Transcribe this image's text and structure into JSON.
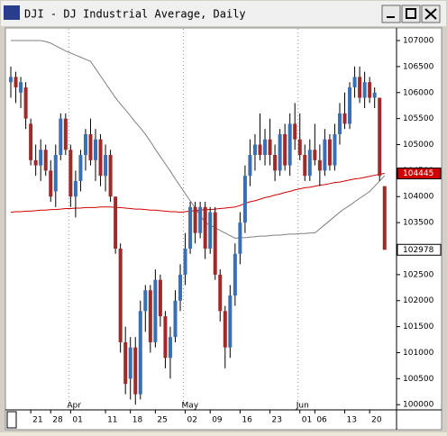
{
  "window": {
    "title": "DJI - DJ Industrial Average, Daily"
  },
  "chart_data": {
    "type": "candlestick",
    "categories": [
      null,
      null,
      null,
      null,
      "21",
      null,
      null,
      null,
      "28",
      null,
      null,
      null,
      "01",
      null,
      null,
      null,
      null,
      null,
      null,
      "11",
      null,
      null,
      null,
      null,
      "18",
      null,
      null,
      null,
      null,
      "25",
      null,
      null,
      null,
      null,
      null,
      "02",
      null,
      null,
      null,
      null,
      "09",
      null,
      null,
      null,
      null,
      null,
      "16",
      null,
      null,
      null,
      null,
      null,
      "23",
      null,
      null,
      null,
      null,
      null,
      "01",
      null,
      null,
      "06",
      null,
      null,
      null,
      null,
      null,
      "13",
      null,
      null,
      null,
      null,
      "20",
      null,
      null,
      null
    ],
    "months": [
      null,
      null,
      null,
      null,
      null,
      null,
      null,
      null,
      null,
      null,
      null,
      null,
      "Apr",
      null,
      null,
      null,
      null,
      null,
      null,
      null,
      null,
      null,
      null,
      null,
      null,
      null,
      null,
      null,
      null,
      null,
      null,
      null,
      null,
      null,
      null,
      "May",
      null,
      null,
      null,
      null,
      null,
      null,
      null,
      null,
      null,
      null,
      null,
      null,
      null,
      null,
      null,
      null,
      null,
      null,
      null,
      null,
      null,
      null,
      "Jun",
      null,
      null,
      null,
      null,
      null,
      null,
      null,
      null,
      null,
      null,
      null,
      null,
      null,
      null,
      null,
      null,
      null
    ],
    "ohlc": [
      [
        106200,
        106500,
        105900,
        106300
      ],
      [
        106300,
        106400,
        105800,
        106100
      ],
      [
        106000,
        106300,
        105700,
        106200
      ],
      [
        106100,
        106200,
        105300,
        105500
      ],
      [
        105400,
        105500,
        104600,
        104700
      ],
      [
        104700,
        105000,
        104400,
        104600
      ],
      [
        104600,
        105100,
        104300,
        104900
      ],
      [
        104900,
        105000,
        104400,
        104500
      ],
      [
        104500,
        104700,
        103900,
        104000
      ],
      [
        104100,
        105000,
        103800,
        104800
      ],
      [
        104800,
        105600,
        104700,
        105500
      ],
      [
        105500,
        105600,
        104800,
        104900
      ],
      [
        104900,
        105000,
        103800,
        104000
      ],
      [
        104000,
        104500,
        103600,
        104300
      ],
      [
        104300,
        104900,
        104100,
        104800
      ],
      [
        104800,
        105300,
        104500,
        105200
      ],
      [
        105200,
        105500,
        104600,
        104700
      ],
      [
        104700,
        105300,
        104300,
        105100
      ],
      [
        105100,
        105200,
        104200,
        104400
      ],
      [
        104400,
        105000,
        104100,
        104800
      ],
      [
        104800,
        104900,
        103900,
        104000
      ],
      [
        104000,
        104000,
        102900,
        103000
      ],
      [
        103000,
        103100,
        101000,
        101200
      ],
      [
        101200,
        101500,
        100200,
        100400
      ],
      [
        100500,
        101300,
        100100,
        101100
      ],
      [
        101100,
        101300,
        100000,
        100200
      ],
      [
        100200,
        102000,
        100100,
        101800
      ],
      [
        101800,
        102300,
        101400,
        102200
      ],
      [
        102200,
        102300,
        101000,
        101200
      ],
      [
        101200,
        102600,
        101100,
        102400
      ],
      [
        102400,
        102500,
        101500,
        101700
      ],
      [
        101700,
        101800,
        100700,
        100900
      ],
      [
        100900,
        101500,
        100500,
        101300
      ],
      [
        101300,
        102200,
        101200,
        102000
      ],
      [
        102000,
        102700,
        101800,
        102500
      ],
      [
        102500,
        103300,
        102300,
        103000
      ],
      [
        103000,
        103900,
        102900,
        103800
      ],
      [
        103800,
        103900,
        103100,
        103300
      ],
      [
        103300,
        103900,
        103200,
        103800
      ],
      [
        103800,
        103900,
        102800,
        103000
      ],
      [
        103000,
        103800,
        102900,
        103700
      ],
      [
        103700,
        103800,
        102400,
        102500
      ],
      [
        102500,
        102600,
        101600,
        101800
      ],
      [
        101800,
        101900,
        100700,
        101100
      ],
      [
        101100,
        102300,
        100900,
        102100
      ],
      [
        102100,
        103100,
        101900,
        102900
      ],
      [
        102900,
        103700,
        102700,
        103500
      ],
      [
        103500,
        104600,
        103300,
        104400
      ],
      [
        104400,
        105100,
        104200,
        104800
      ],
      [
        104800,
        105200,
        104500,
        105000
      ],
      [
        105000,
        105600,
        104700,
        104800
      ],
      [
        104800,
        105300,
        104600,
        105100
      ],
      [
        105100,
        105500,
        104600,
        104800
      ],
      [
        104800,
        105000,
        104300,
        104500
      ],
      [
        104500,
        105300,
        104400,
        105200
      ],
      [
        105200,
        105400,
        104500,
        104600
      ],
      [
        104600,
        105600,
        104400,
        105400
      ],
      [
        105400,
        105800,
        104900,
        105100
      ],
      [
        105100,
        105600,
        104700,
        104800
      ],
      [
        104800,
        105000,
        104300,
        104400
      ],
      [
        104400,
        105100,
        104300,
        104900
      ],
      [
        104900,
        105400,
        104600,
        104700
      ],
      [
        104700,
        105000,
        104200,
        104500
      ],
      [
        104500,
        105300,
        104400,
        105100
      ],
      [
        105100,
        105200,
        104500,
        104600
      ],
      [
        104600,
        105400,
        104500,
        105200
      ],
      [
        105200,
        105800,
        105000,
        105600
      ],
      [
        105600,
        106000,
        105300,
        105400
      ],
      [
        105400,
        106200,
        105300,
        106100
      ],
      [
        106100,
        106500,
        105900,
        106300
      ],
      [
        106300,
        106500,
        105800,
        105900
      ],
      [
        105900,
        106400,
        105700,
        106200
      ],
      [
        106200,
        106300,
        105800,
        105900
      ],
      [
        105900,
        106100,
        105700,
        106000
      ],
      [
        105900,
        105900,
        104300,
        104400
      ],
      [
        104200,
        104200,
        102978,
        102978
      ]
    ],
    "up_color": "#3a6fb4",
    "down_color": "#a02a2a",
    "overlays": [
      {
        "color": "#808080",
        "values": [
          107000,
          107000,
          107000,
          107000,
          107000,
          107000,
          107000,
          106980,
          106950,
          106900,
          106850,
          106800,
          106760,
          106720,
          106680,
          106640,
          106600,
          106460,
          106320,
          106180,
          106040,
          105900,
          105780,
          105670,
          105550,
          105430,
          105320,
          105200,
          105060,
          104910,
          104770,
          104630,
          104490,
          104340,
          104200,
          104060,
          103920,
          103780,
          103640,
          103500,
          103450,
          103400,
          103350,
          103300,
          103250,
          103200,
          103210,
          103210,
          103220,
          103230,
          103240,
          103240,
          103250,
          103260,
          103260,
          103270,
          103280,
          103280,
          103290,
          103290,
          103300,
          103300,
          103380,
          103460,
          103540,
          103620,
          103700,
          103770,
          103830,
          103900,
          103970,
          104030,
          104100,
          104200,
          104300,
          104400
        ]
      },
      {
        "color": "#d00000",
        "values": [
          103700,
          103710,
          103710,
          103720,
          103720,
          103730,
          103740,
          103740,
          103750,
          103750,
          103760,
          103770,
          103770,
          103780,
          103780,
          103790,
          103790,
          103790,
          103800,
          103800,
          103800,
          103790,
          103790,
          103780,
          103770,
          103760,
          103760,
          103750,
          103740,
          103740,
          103730,
          103720,
          103710,
          103710,
          103700,
          103710,
          103720,
          103730,
          103740,
          103750,
          103750,
          103760,
          103770,
          103780,
          103790,
          103800,
          103830,
          103870,
          103900,
          103920,
          103950,
          103980,
          104000,
          104030,
          104050,
          104080,
          104100,
          104130,
          104150,
          104170,
          104180,
          104200,
          104220,
          104230,
          104250,
          104270,
          104280,
          104300,
          104320,
          104340,
          104350,
          104370,
          104390,
          104410,
          104430,
          104445
        ]
      }
    ],
    "price_tags": [
      {
        "value": 104445,
        "color": "#d00000",
        "text_color": "#ffffff"
      },
      {
        "value": 102978,
        "color": "#ffffff",
        "text_color": "#000000"
      }
    ],
    "ylim": [
      99900,
      107260
    ],
    "yticks": [
      100000,
      100500,
      101000,
      101500,
      102000,
      102500,
      103000,
      103500,
      104000,
      104500,
      105000,
      105500,
      106000,
      106500,
      107000
    ]
  }
}
